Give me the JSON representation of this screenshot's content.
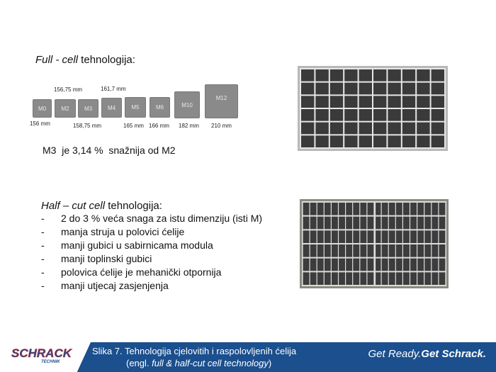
{
  "full_cell": {
    "title_italic": "Full - cell",
    "title_rest": " tehnologija:",
    "cells": [
      {
        "name": "M0"
      },
      {
        "name": "M2"
      },
      {
        "name": "M3"
      },
      {
        "name": "M4"
      },
      {
        "name": "M5"
      },
      {
        "name": "M6"
      },
      {
        "name": "M10"
      },
      {
        "name": "M12"
      }
    ],
    "dimensions": {
      "m0": "156 mm",
      "m2": "156,75 mm",
      "m3": "158,75 mm",
      "m4": "161,7 mm",
      "m5": "165 mm",
      "m6": "166 mm",
      "m10": "182 mm",
      "m12": "210 mm"
    },
    "note": "M3  je 3,14 %  snažnija od M2",
    "panel": {
      "columns": 10,
      "rows": 6
    }
  },
  "half_cut": {
    "title_italic": "Half – cut cell",
    "title_rest": " tehnologija:",
    "bullets": [
      "2 do 3 % veća snaga za istu dimenziju (isti M)",
      "manja struja u polovici ćelije",
      "manji gubici u sabirnicama modula",
      "manji toplinski gubici",
      "polovica ćelije je mehanički otpornija",
      "manji utjecaj zasjenjenja"
    ],
    "bullet_marker": "-",
    "panel": {
      "columns": 20,
      "rows": 6
    }
  },
  "footer": {
    "logo": "SCHRACK",
    "logo_sub": "TECHNIK",
    "caption_line1": "Slika 7. Tehnologija cjelovitih i raspolovljenih ćelija",
    "caption_line2_pre": "(engl. ",
    "caption_line2_italic": "full & half-cut cell technology",
    "caption_line2_post": ")",
    "slogan_a": "Get Ready.",
    "slogan_b": "Get Schrack.",
    "color": "#1b4f8e"
  }
}
